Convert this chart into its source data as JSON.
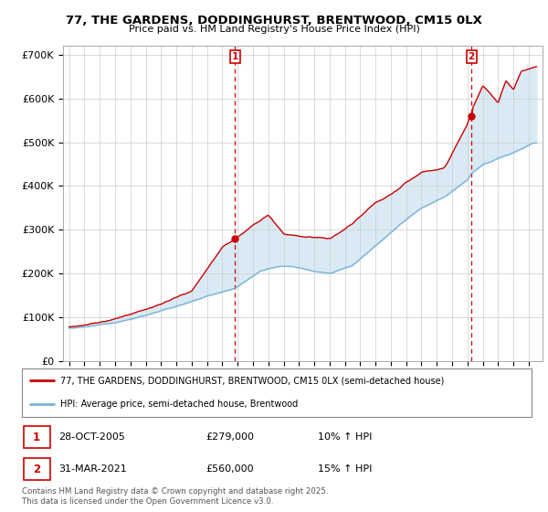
{
  "title_line1": "77, THE GARDENS, DODDINGHURST, BRENTWOOD, CM15 0LX",
  "title_line2": "Price paid vs. HM Land Registry's House Price Index (HPI)",
  "ylim": [
    0,
    720000
  ],
  "yticks": [
    0,
    100000,
    200000,
    300000,
    400000,
    500000,
    600000,
    700000
  ],
  "ytick_labels": [
    "£0",
    "£100K",
    "£200K",
    "£300K",
    "£400K",
    "£500K",
    "£600K",
    "£700K"
  ],
  "hpi_color": "#7ab4d8",
  "price_color": "#cc0000",
  "fill_color": "#daeaf5",
  "marker1_x": 2005.83,
  "marker1_price": 279000,
  "marker1_label": "1",
  "marker2_x": 2021.25,
  "marker2_price": 560000,
  "marker2_label": "2",
  "legend_line1": "77, THE GARDENS, DODDINGHURST, BRENTWOOD, CM15 0LX (semi-detached house)",
  "legend_line2": "HPI: Average price, semi-detached house, Brentwood",
  "footer": "Contains HM Land Registry data © Crown copyright and database right 2025.\nThis data is licensed under the Open Government Licence v3.0.",
  "bg_color": "#ffffff",
  "grid_color": "#cccccc",
  "table_row1": [
    "1",
    "28-OCT-2005",
    "£279,000",
    "10% ↑ HPI"
  ],
  "table_row2": [
    "2",
    "31-MAR-2021",
    "£560,000",
    "15% ↑ HPI"
  ]
}
